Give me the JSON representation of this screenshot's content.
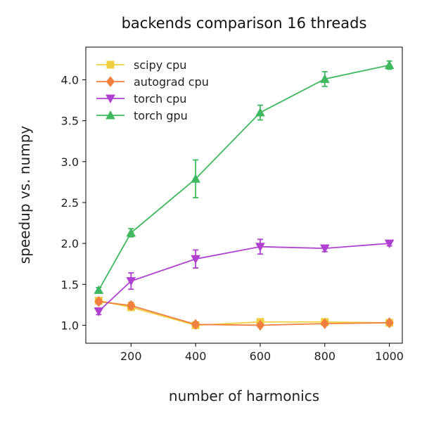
{
  "chart_data": {
    "type": "line",
    "title": "backends comparison 16 threads",
    "xlabel": "number of harmonics",
    "ylabel": "speedup vs. numpy",
    "xlim": [
      60,
      1040
    ],
    "ylim": [
      0.78,
      4.4
    ],
    "xticks": [
      200,
      400,
      600,
      800,
      1000
    ],
    "yticks": [
      1.0,
      1.5,
      2.0,
      2.5,
      3.0,
      3.5,
      4.0
    ],
    "xtick_labels": [
      "200",
      "400",
      "600",
      "800",
      "1000"
    ],
    "ytick_labels": [
      "1.0",
      "1.5",
      "2.0",
      "2.5",
      "3.0",
      "3.5",
      "4.0"
    ],
    "grid": false,
    "legend_position": "top-left",
    "series": [
      {
        "name": "scipy cpu",
        "color": "#f0d040",
        "marker": "square",
        "x": [
          100,
          200,
          400,
          600,
          800,
          1000
        ],
        "y": [
          1.3,
          1.22,
          1.0,
          1.04,
          1.04,
          1.03
        ],
        "err": [
          0.03,
          0.04,
          0.03,
          0.02,
          0.02,
          0.02
        ]
      },
      {
        "name": "autograd cpu",
        "color": "#f08040",
        "marker": "diamond",
        "x": [
          100,
          200,
          400,
          600,
          800,
          1000
        ],
        "y": [
          1.29,
          1.24,
          1.01,
          1.0,
          1.02,
          1.03
        ],
        "err": [
          0.03,
          0.04,
          0.03,
          0.02,
          0.02,
          0.02
        ]
      },
      {
        "name": "torch cpu",
        "color": "#b040d0",
        "marker": "triangle-down",
        "x": [
          100,
          200,
          400,
          600,
          800,
          1000
        ],
        "y": [
          1.17,
          1.54,
          1.81,
          1.96,
          1.94,
          2.0
        ],
        "err": [
          0.04,
          0.1,
          0.11,
          0.09,
          0.04,
          0.03
        ]
      },
      {
        "name": "torch gpu",
        "color": "#40b860",
        "marker": "triangle-up",
        "x": [
          100,
          200,
          400,
          600,
          800,
          1000
        ],
        "y": [
          1.43,
          2.13,
          2.79,
          3.6,
          4.01,
          4.18
        ],
        "err": [
          0.03,
          0.05,
          0.23,
          0.09,
          0.09,
          0.05
        ]
      }
    ]
  }
}
